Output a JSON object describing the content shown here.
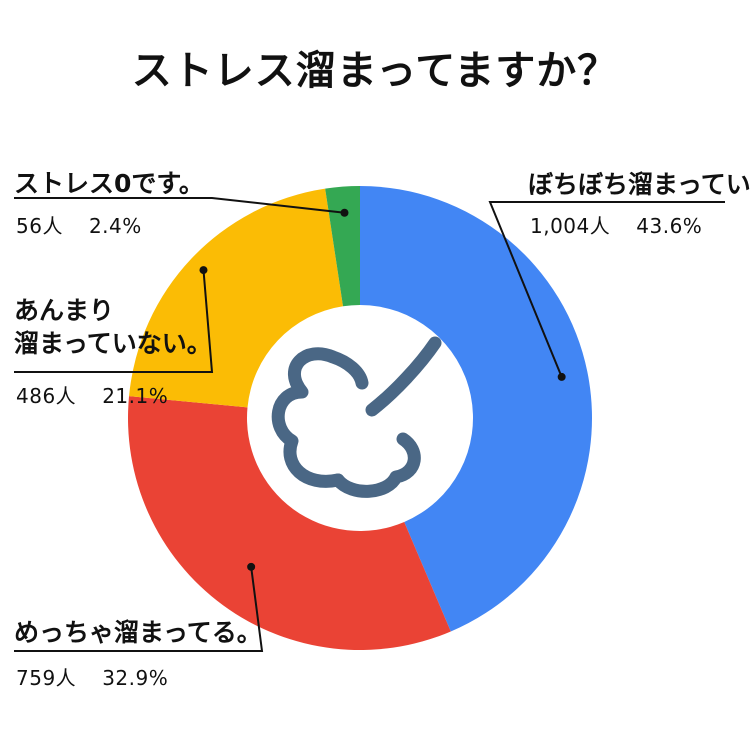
{
  "chart_data": {
    "type": "pie",
    "title": "ストレス溜まってますか？",
    "categories": [
      "ぼちぼち溜まっている",
      "めっちゃ溜まってる。",
      "あんまり溜まっていない。",
      "ストレス0です。"
    ],
    "label_lines": [
      [
        "ぼちぼち溜まっている"
      ],
      [
        "めっちゃ溜まってる。"
      ],
      [
        "あんまり",
        "溜まっていない。"
      ],
      [
        "ストレス0です。"
      ]
    ],
    "counts": [
      "1,004人",
      "759人",
      "486人",
      "56人"
    ],
    "percents": [
      "43.6%",
      "32.9%",
      "21.1%",
      "2.4%"
    ],
    "values": [
      43.6,
      32.9,
      21.1,
      2.4
    ],
    "colors": [
      "#4286F4",
      "#EA4335",
      "#FBBC05",
      "#34A853"
    ],
    "center_icon": "stress-cloud-icon",
    "icon_color": "#4A6785"
  }
}
